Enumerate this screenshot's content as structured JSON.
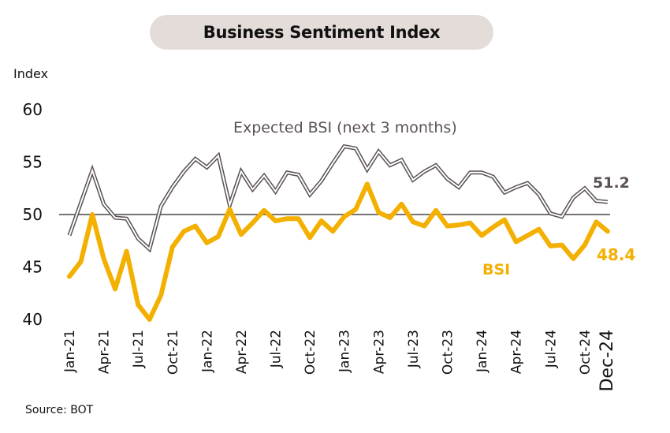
{
  "chart_data": {
    "type": "line",
    "title": "Business Sentiment Index",
    "ylabel": "Index",
    "xlabel": "",
    "ylim": [
      40,
      60
    ],
    "yticks": [
      40,
      45,
      50,
      55,
      60
    ],
    "reference_line": 50,
    "source": "Source: BOT",
    "x": [
      "Jan-21",
      "Feb-21",
      "Mar-21",
      "Apr-21",
      "May-21",
      "Jun-21",
      "Jul-21",
      "Aug-21",
      "Sep-21",
      "Oct-21",
      "Nov-21",
      "Dec-21",
      "Jan-22",
      "Feb-22",
      "Mar-22",
      "Apr-22",
      "May-22",
      "Jun-22",
      "Jul-22",
      "Aug-22",
      "Sep-22",
      "Oct-22",
      "Nov-22",
      "Dec-22",
      "Jan-23",
      "Feb-23",
      "Mar-23",
      "Apr-23",
      "May-23",
      "Jun-23",
      "Jul-23",
      "Aug-23",
      "Sep-23",
      "Oct-23",
      "Nov-23",
      "Dec-23",
      "Jan-24",
      "Feb-24",
      "Mar-24",
      "Apr-24",
      "May-24",
      "Jun-24",
      "Jul-24",
      "Aug-24",
      "Sep-24",
      "Oct-24",
      "Nov-24",
      "Dec-24"
    ],
    "xtick_labels": [
      {
        "index": 0,
        "label": "Jan-21"
      },
      {
        "index": 3,
        "label": "Apr-21"
      },
      {
        "index": 6,
        "label": "Jul-21"
      },
      {
        "index": 9,
        "label": "Oct-21"
      },
      {
        "index": 12,
        "label": "Jan-22"
      },
      {
        "index": 15,
        "label": "Apr-22"
      },
      {
        "index": 18,
        "label": "Jul-22"
      },
      {
        "index": 21,
        "label": "Oct-22"
      },
      {
        "index": 24,
        "label": "Jan-23"
      },
      {
        "index": 27,
        "label": "Apr-23"
      },
      {
        "index": 30,
        "label": "Jul-23"
      },
      {
        "index": 33,
        "label": "Oct-23"
      },
      {
        "index": 36,
        "label": "Jan-24"
      },
      {
        "index": 39,
        "label": "Apr-24"
      },
      {
        "index": 42,
        "label": "Jul-24"
      },
      {
        "index": 45,
        "label": "Oct-24"
      },
      {
        "index": 47,
        "label": "Dec-24"
      }
    ],
    "series": [
      {
        "name": "Expected BSI (next 3 months)",
        "color": "#5b5252",
        "end_label": "51.2",
        "values": [
          48.0,
          51.1,
          54.2,
          51.0,
          49.7,
          49.6,
          47.7,
          46.7,
          50.8,
          52.6,
          54.1,
          55.3,
          54.5,
          55.6,
          50.9,
          54.1,
          52.4,
          53.7,
          52.2,
          54.0,
          53.8,
          51.9,
          53.2,
          54.9,
          56.5,
          56.3,
          54.3,
          56.0,
          54.7,
          55.2,
          53.3,
          54.1,
          54.7,
          53.4,
          52.6,
          54.0,
          54.0,
          53.6,
          52.1,
          52.6,
          53.0,
          51.9,
          50.1,
          49.8,
          51.6,
          52.5,
          51.3,
          51.2
        ]
      },
      {
        "name": "BSI",
        "color": "#f4b000",
        "end_label": "48.4",
        "values": [
          44.1,
          45.5,
          50.0,
          45.8,
          42.9,
          46.5,
          41.4,
          40.0,
          42.3,
          46.9,
          48.4,
          48.9,
          47.3,
          47.9,
          50.5,
          48.1,
          49.2,
          50.4,
          49.4,
          49.6,
          49.6,
          47.8,
          49.4,
          48.4,
          49.8,
          50.5,
          52.9,
          50.2,
          49.7,
          51.0,
          49.3,
          48.9,
          50.4,
          48.9,
          49.0,
          49.2,
          48.0,
          48.8,
          49.5,
          47.4,
          48.0,
          48.6,
          47.0,
          47.1,
          45.8,
          47.1,
          49.3,
          48.4
        ]
      }
    ]
  }
}
